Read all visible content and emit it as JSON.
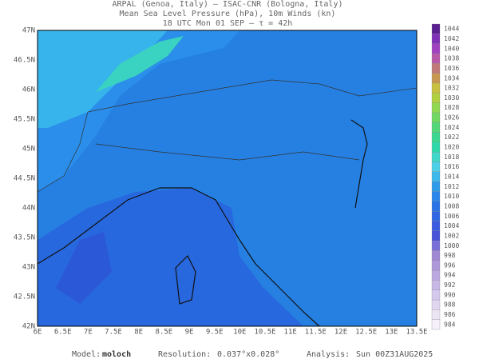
{
  "header": {
    "lines": [
      "ARPAL (Genoa, Italy)  —  ISAC-CNR (Bologna, Italy)",
      "Mean Sea Level Pressure (hPa), 10m Winds (kn)",
      "18 UTC Mon 01 SEP  —  τ = 42h"
    ]
  },
  "map": {
    "lon_labels": [
      "6E",
      "6.5E",
      "7E",
      "7.5E",
      "8E",
      "8.5E",
      "9E",
      "9.5E",
      "10E",
      "10.5E",
      "11E",
      "11.5E",
      "12E",
      "12.5E",
      "13E",
      "13.5E"
    ],
    "lat_labels": [
      "47N",
      "46.5N",
      "46N",
      "45.5N",
      "45N",
      "44.5N",
      "44N",
      "43.5N",
      "43N",
      "42.5N",
      "42N"
    ]
  },
  "colorbar": {
    "levels": [
      984,
      986,
      988,
      990,
      992,
      994,
      996,
      998,
      1000,
      1002,
      1004,
      1006,
      1008,
      1010,
      1012,
      1014,
      1016,
      1018,
      1020,
      1022,
      1024,
      1026,
      1028,
      1030,
      1032,
      1034,
      1036,
      1038,
      1040,
      1042,
      1044
    ],
    "colors": [
      "#f5f0fa",
      "#ece4f5",
      "#e0d6f0",
      "#d4c8ec",
      "#c8b8e6",
      "#bca8e0",
      "#ae98da",
      "#a088d4",
      "#7a6ed8",
      "#4a52d8",
      "#3a5ae0",
      "#2f66e4",
      "#2a74e6",
      "#2a86ea",
      "#2d9be8",
      "#3cb8ea",
      "#4ecfe8",
      "#40d8c8",
      "#2fd8a8",
      "#3ad890",
      "#52d878",
      "#70d860",
      "#90d850",
      "#b0d040",
      "#c8c040",
      "#c89850",
      "#c07878",
      "#b858a8",
      "#a040c0",
      "#8030b8",
      "#5a2090"
    ]
  },
  "footer": {
    "model_label": "Model:",
    "model": "moloch",
    "resolution_label": "Resolution:",
    "resolution": "0.037°x0.028°",
    "analysis_label": "Analysis:",
    "analysis": "Sun 00Z31AUG2025"
  }
}
